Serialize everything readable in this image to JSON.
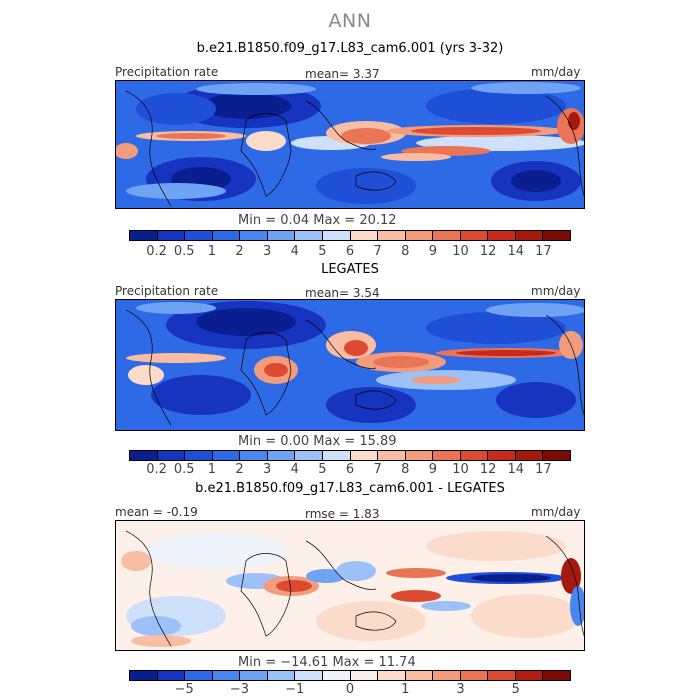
{
  "supertitle": "ANN",
  "panels": [
    {
      "title": "b.e21.B1850.f09_g17.L83_cam6.001 (yrs 3-32)",
      "left_label": "Precipitation rate",
      "center_label": "mean=    3.37",
      "right_label": "mm/day",
      "minmax": "Min =     0.04  Max =   20.12",
      "colors": [
        "#0a1f8f",
        "#1634c0",
        "#1f4fd6",
        "#2f6ae6",
        "#4a86ef",
        "#6fa3f4",
        "#9cc1f8",
        "#cfe0fa",
        "#fbdccb",
        "#f8bda2",
        "#f39c7d",
        "#ea7456",
        "#dd4a32",
        "#c52a1c",
        "#a41a11",
        "#7d0a07"
      ],
      "ticks": [
        "0.2",
        "0.5",
        "1",
        "2",
        "3",
        "4",
        "5",
        "6",
        "7",
        "8",
        "9",
        "10",
        "12",
        "14",
        "17"
      ]
    },
    {
      "title": "LEGATES",
      "left_label": "Precipitation rate",
      "center_label": "mean=    3.54",
      "right_label": "mm/day",
      "minmax": "Min =     0.00  Max =   15.89",
      "colors": [
        "#0a1f8f",
        "#1634c0",
        "#1f4fd6",
        "#2f6ae6",
        "#4a86ef",
        "#6fa3f4",
        "#9cc1f8",
        "#cfe0fa",
        "#fbdccb",
        "#f8bda2",
        "#f39c7d",
        "#ea7456",
        "#dd4a32",
        "#c52a1c",
        "#a41a11",
        "#7d0a07"
      ],
      "ticks": [
        "0.2",
        "0.5",
        "1",
        "2",
        "3",
        "4",
        "5",
        "6",
        "7",
        "8",
        "9",
        "10",
        "12",
        "14",
        "17"
      ]
    },
    {
      "title": "b.e21.B1850.f09_g17.L83_cam6.001 - LEGATES",
      "left_label": "mean =   -0.19",
      "center_label": "rmse =     1.83",
      "right_label": "mm/day",
      "minmax": "Min = −14.61  Max =   11.74",
      "colors": [
        "#0a1f8f",
        "#1634c0",
        "#2f6ae6",
        "#4a86ef",
        "#6fa3f4",
        "#9cc1f8",
        "#cfe0fa",
        "#eef3fc",
        "#fdf0e8",
        "#fbdccb",
        "#f8bda2",
        "#f39c7d",
        "#ea7456",
        "#dd4a32",
        "#b01d12",
        "#7d0a07"
      ],
      "ticks": [
        "−5",
        "−3",
        "−1",
        "0",
        "1",
        "3",
        "5"
      ]
    }
  ]
}
